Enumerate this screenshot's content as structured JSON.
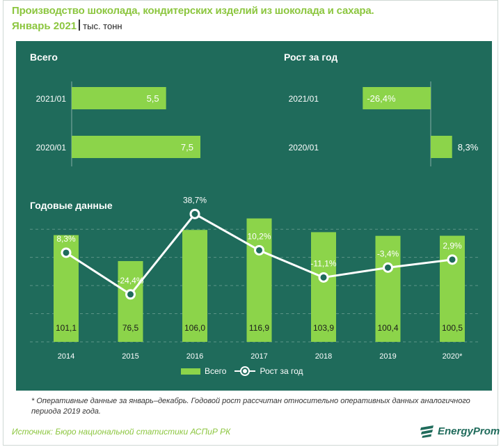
{
  "header": {
    "title": "Производство шоколада, кондитерских изделий из шоколада и сахара.",
    "period": "Январь 2021",
    "unit": "тыс. тонн"
  },
  "colors": {
    "panel_bg": "#1f6b5b",
    "bar": "#8cd44a",
    "accent": "#8cc63f",
    "line": "#ffffff"
  },
  "chart_data": [
    {
      "type": "bar",
      "title": "Всего",
      "orientation": "horizontal",
      "categories": [
        "2021/01",
        "2020/01"
      ],
      "values": [
        5.5,
        7.5
      ],
      "value_labels": [
        "5,5",
        "7,5"
      ],
      "xlim": [
        0,
        7.5
      ]
    },
    {
      "type": "bar",
      "title": "Рост за год",
      "orientation": "horizontal",
      "categories": [
        "2021/01",
        "2020/01"
      ],
      "values": [
        -26.4,
        8.3
      ],
      "value_labels": [
        "-26,4%",
        "8,3%"
      ],
      "unit": "%"
    },
    {
      "type": "bar",
      "title": "Годовые данные",
      "categories": [
        "2014",
        "2015",
        "2016",
        "2017",
        "2018",
        "2019",
        "2020*"
      ],
      "series": [
        {
          "name": "Всего",
          "type": "bar",
          "values": [
            101.1,
            76.5,
            106.0,
            116.9,
            103.9,
            100.4,
            100.5
          ],
          "labels": [
            "101,1",
            "76,5",
            "106,0",
            "116,9",
            "103,9",
            "100,4",
            "100,5"
          ]
        },
        {
          "name": "Рост за год",
          "type": "line",
          "values": [
            8.3,
            -24.4,
            38.7,
            10.2,
            -11.1,
            -3.4,
            2.9
          ],
          "labels": [
            "8,3%",
            "-24,4%",
            "38,7%",
            "10,2%",
            "-11,1%",
            "-3,4%",
            "2,9%"
          ]
        }
      ],
      "ylim_bars": [
        0,
        120
      ],
      "ylim_line": [
        -36,
        46
      ],
      "grid": true,
      "legend": "bottom"
    }
  ],
  "legend": {
    "bars_label": "Всего",
    "line_label": "Рост за год"
  },
  "footnote": "* Оперативные данные за январь–декабрь. Годовой рост рассчитан относительно оперативных данных аналогичного периода 2019 года.",
  "source": "Источник: Бюро национальной статистики АСПиР РК",
  "logo": {
    "text": "EnergyProm",
    "icon": "energyprom-logo-icon"
  }
}
